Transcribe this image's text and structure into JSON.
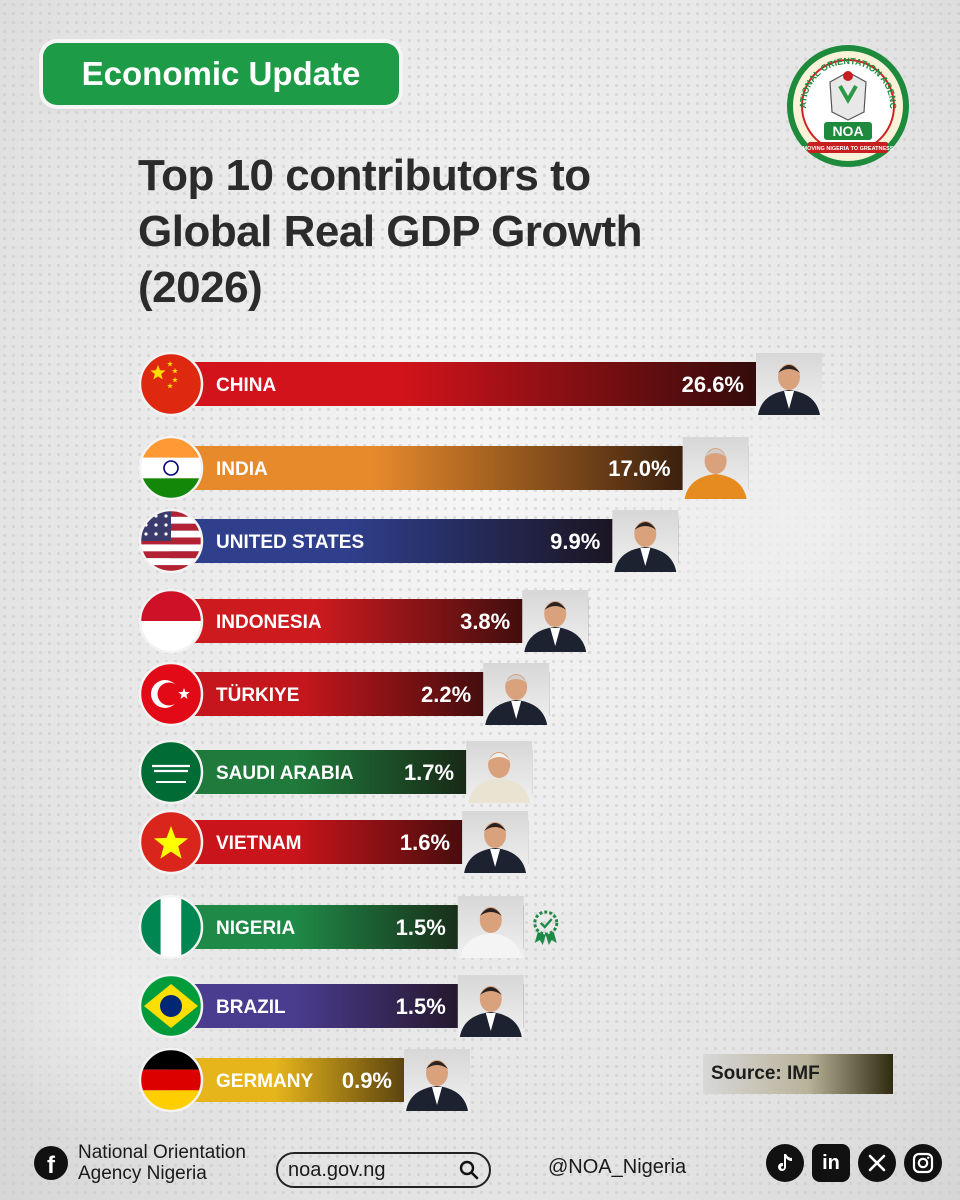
{
  "header": {
    "badge": "Economic Update",
    "logo_text": "NATIONAL ORIENTATION AGENCY",
    "logo_abbrev": "NOA",
    "logo_motto": "MOVING NIGERIA TO GREATNESS"
  },
  "chart_data": {
    "type": "bar",
    "orientation": "horizontal",
    "title_lines": [
      "Top 10 contributors to",
      "Global Real GDP Growth",
      "(2026)"
    ],
    "categories": [
      "CHINA",
      "INDIA",
      "UNITED STATES",
      "INDONESIA",
      "TÜRKIYE",
      "SAUDI ARABIA",
      "VIETNAM",
      "NIGERIA",
      "BRAZIL",
      "GERMANY"
    ],
    "values": [
      26.6,
      17.0,
      9.9,
      3.8,
      2.2,
      1.7,
      1.6,
      1.5,
      1.5,
      0.9
    ],
    "value_labels": [
      "26.6%",
      "17.0%",
      "9.9%",
      "3.8%",
      "2.2%",
      "1.7%",
      "1.6%",
      "1.5%",
      "1.5%",
      "0.9%"
    ],
    "bar_colors": [
      "#d3131b",
      "#e78a2c",
      "#2f3f8c",
      "#cc1a1f",
      "#c4161c",
      "#1f7a3b",
      "#c8141a",
      "#1f8a47",
      "#4a3c8e",
      "#e6b51c"
    ],
    "highlight": "NIGERIA",
    "source": "Source: IMF"
  },
  "footer": {
    "org_line1": "National Orientation",
    "org_line2": "Agency Nigeria",
    "website": "noa.gov.ng",
    "handle": "@NOA_Nigeria",
    "social_icons": [
      "tiktok-icon",
      "linkedin-icon",
      "x-icon",
      "instagram-icon"
    ]
  }
}
